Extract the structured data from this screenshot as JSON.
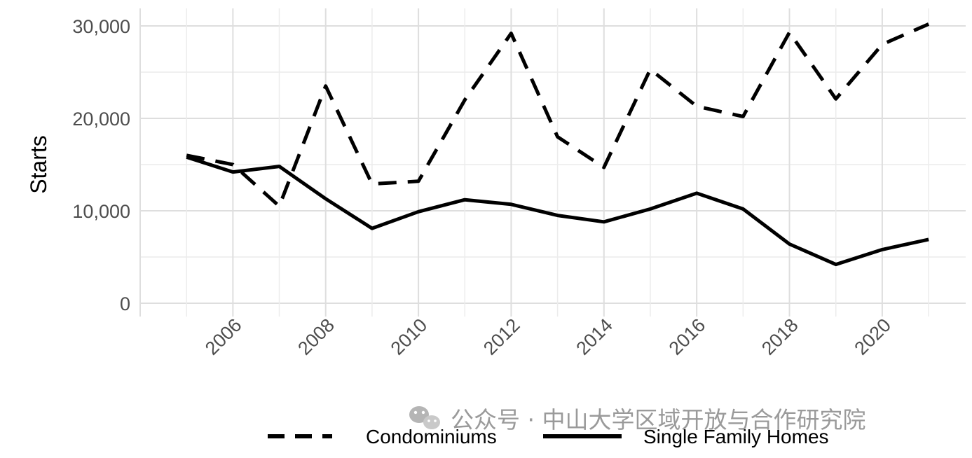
{
  "chart_data": {
    "type": "line",
    "title": "",
    "xlabel": "",
    "ylabel": "Starts",
    "x": [
      2005,
      2006,
      2007,
      2008,
      2009,
      2010,
      2011,
      2012,
      2013,
      2014,
      2015,
      2016,
      2017,
      2018,
      2019,
      2020,
      2021
    ],
    "xticks": [
      "2006",
      "2008",
      "2010",
      "2012",
      "2014",
      "2016",
      "2018",
      "2020"
    ],
    "yticks": [
      "0",
      "10,000",
      "20,000",
      "30,000"
    ],
    "ylim": [
      0,
      30000
    ],
    "xlim": [
      2004,
      2021.8
    ],
    "grid": true,
    "legend_position": "bottom",
    "series": [
      {
        "name": "Condominiums",
        "line_style": "dashed",
        "color": "#000000",
        "values": [
          16000,
          15000,
          10500,
          23500,
          12900,
          13200,
          22000,
          29200,
          18000,
          14700,
          25300,
          21300,
          20200,
          29300,
          22100,
          28000,
          30200
        ]
      },
      {
        "name": "Single Family Homes",
        "line_style": "solid",
        "color": "#000000",
        "values": [
          15800,
          14200,
          14800,
          11300,
          8100,
          9900,
          11200,
          10700,
          9500,
          8800,
          10200,
          11900,
          10200,
          6400,
          4200,
          5800,
          6900
        ]
      }
    ]
  },
  "watermark": {
    "icon": "wechat-icon",
    "text": "公众号 · 中山大学区域开放与合作研究院"
  }
}
